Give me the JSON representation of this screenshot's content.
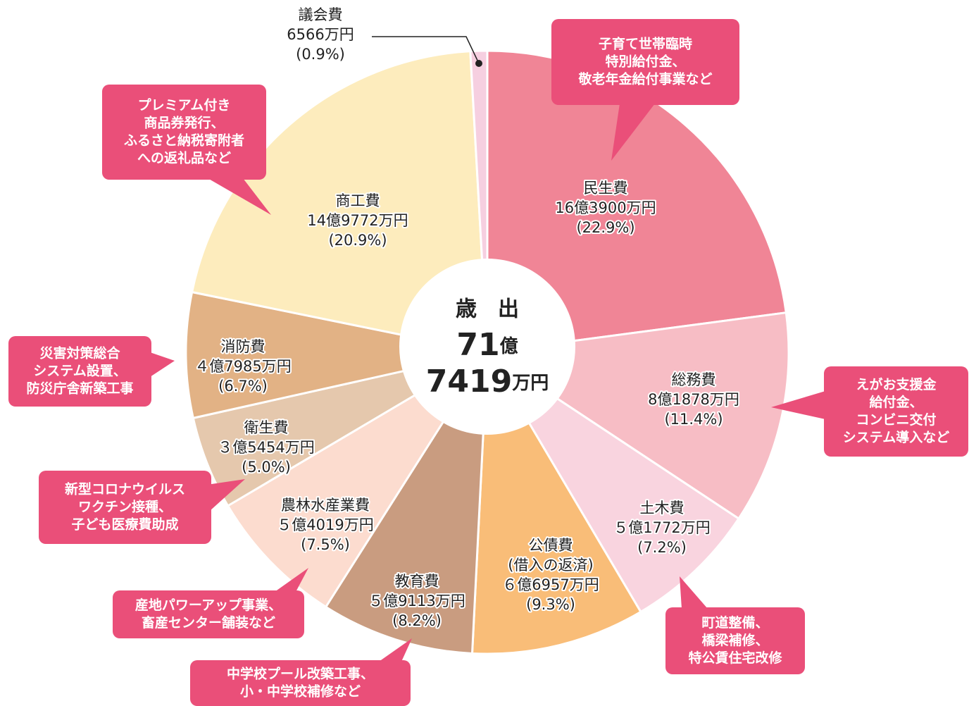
{
  "chart_data": {
    "type": "pie",
    "center_label": {
      "title": "歳　出",
      "amount_1": "71",
      "unit_1": "億",
      "amount_2": "7419",
      "unit_2": "万円"
    },
    "categories": [
      "民生費",
      "総務費",
      "土木費",
      "公債費",
      "教育費",
      "農林水産業費",
      "衛生費",
      "消防費",
      "商工費",
      "議会費"
    ],
    "category_notes": {
      "3": "(借入の返済)"
    },
    "amounts": [
      "16億3900万円",
      "8億1878万円",
      "５億1772万円",
      "６億6957万円",
      "５億9113万円",
      "５億4019万円",
      "３億5454万円",
      "４億7985万円",
      "14億9772万円",
      "6566万円"
    ],
    "values": [
      22.9,
      11.4,
      7.2,
      9.3,
      8.2,
      7.5,
      5.0,
      6.7,
      20.9,
      0.9
    ],
    "value_labels": [
      "(22.9%)",
      "(11.4%)",
      "(7.2%)",
      "(9.3%)",
      "(8.2%)",
      "(7.5%)",
      "(5.0%)",
      "(6.7%)",
      "(20.9%)",
      "(0.9%)"
    ],
    "colors": [
      "#f08596",
      "#f7bdc5",
      "#f9d4df",
      "#f9bd78",
      "#c99c80",
      "#fcdccf",
      "#e5c8ad",
      "#e2b285",
      "#fdecbd",
      "#f6cfe0"
    ],
    "annotations": [
      [
        "子育て世帯臨時",
        "特別給付金、",
        "敬老年金給付事業など"
      ],
      [
        "プレミアム付き",
        "商品券発行、",
        "ふるさと納税寄附者",
        "への返礼品など"
      ],
      [
        "災害対策総合",
        "システム設置、",
        "防災庁舎新築工事"
      ],
      [
        "えがお支援金",
        "給付金、",
        "コンビニ交付",
        "システム導入など"
      ],
      [
        "新型コロナウイルス",
        "ワクチン接種、",
        "子ども医療費助成"
      ],
      [
        "産地パワーアップ事業、",
        "畜産センター舗装など"
      ],
      [
        "中学校プール改築工事、",
        "小・中学校補修など"
      ],
      [
        "町道整備、",
        "橋梁補修、",
        "特公賃住宅改修"
      ]
    ]
  }
}
